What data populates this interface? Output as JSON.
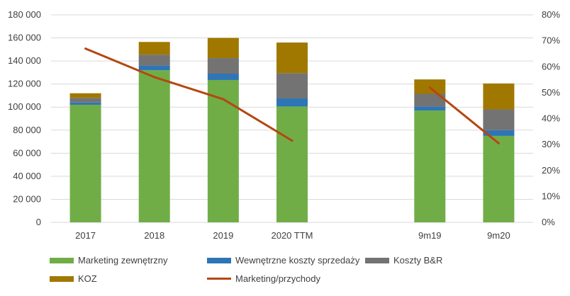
{
  "chart_data": {
    "type": "bar",
    "stacked": true,
    "categories": [
      "2017",
      "2018",
      "2019",
      "2020 TTM",
      "",
      "9m19",
      "9m20"
    ],
    "series": [
      {
        "name": "Marketing zewnętrzny",
        "color": "#70AD47",
        "values": [
          102000,
          132000,
          123500,
          100500,
          null,
          97000,
          75000
        ]
      },
      {
        "name": "Wewnętrzne koszty sprzedaży",
        "color": "#2E75B6",
        "values": [
          2000,
          4000,
          5500,
          7000,
          null,
          3500,
          5000
        ]
      },
      {
        "name": "Koszty B&R",
        "color": "#737373",
        "values": [
          4000,
          9500,
          13500,
          22000,
          null,
          11000,
          18000
        ]
      },
      {
        "name": "KOZ",
        "color": "#A07800",
        "values": [
          4000,
          11000,
          17500,
          26500,
          null,
          12500,
          22500
        ]
      }
    ],
    "line_series": {
      "name": "Marketing/przychody",
      "color": "#B5470F",
      "axis": "right",
      "values": [
        0.67,
        0.56,
        0.475,
        0.315,
        null,
        0.52,
        0.305
      ]
    },
    "y_left": {
      "min": 0,
      "max": 180000,
      "ticks": [
        "0",
        "20 000",
        "40 000",
        "60 000",
        "80 000",
        "100 000",
        "120 000",
        "140 000",
        "160 000",
        "180 000"
      ]
    },
    "y_right": {
      "min": 0,
      "max": 0.8,
      "ticks": [
        "0%",
        "10%",
        "20%",
        "30%",
        "40%",
        "50%",
        "60%",
        "70%",
        "80%"
      ]
    },
    "grid": true,
    "legend_position": "bottom"
  }
}
